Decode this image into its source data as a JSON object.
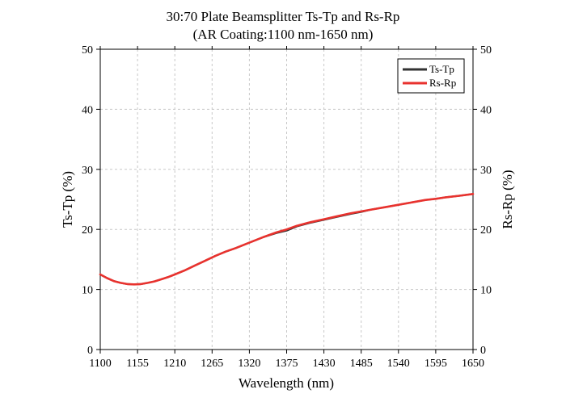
{
  "chart_data": {
    "type": "line",
    "title": "30:70 Plate Beamsplitter Ts-Tp and Rs-Rp",
    "subtitle": "(AR Coating:1100 nm-1650 nm)",
    "xlabel": "Wavelength (nm)",
    "ylabel": "Ts-Tp (%)",
    "ylabel_right": "Rs-Rp (%)",
    "xlim": [
      1100,
      1650
    ],
    "ylim": [
      0,
      50
    ],
    "x_ticks": [
      "1100",
      "1155",
      "1210",
      "1265",
      "1320",
      "1375",
      "1430",
      "1485",
      "1540",
      "1595",
      "1650"
    ],
    "y_ticks": [
      "0",
      "10",
      "20",
      "30",
      "40",
      "50"
    ],
    "grid": true,
    "legend_position": "top-right",
    "series": [
      {
        "name": "Ts-Tp",
        "color": "#333333",
        "x": [
          1100,
          1110,
          1120,
          1130,
          1140,
          1150,
          1160,
          1170,
          1180,
          1190,
          1200,
          1210,
          1225,
          1240,
          1255,
          1270,
          1285,
          1300,
          1320,
          1340,
          1360,
          1375,
          1390,
          1410,
          1430,
          1450,
          1470,
          1485,
          1500,
          1520,
          1540,
          1560,
          1580,
          1595,
          1610,
          1630,
          1650
        ],
        "y": [
          12.5,
          11.9,
          11.4,
          11.1,
          10.9,
          10.85,
          10.9,
          11.1,
          11.35,
          11.7,
          12.05,
          12.5,
          13.2,
          14.0,
          14.8,
          15.6,
          16.3,
          16.9,
          17.8,
          18.7,
          19.4,
          19.8,
          20.5,
          21.1,
          21.6,
          22.1,
          22.6,
          22.9,
          23.3,
          23.7,
          24.1,
          24.5,
          24.9,
          25.1,
          25.35,
          25.6,
          25.9
        ]
      },
      {
        "name": "Rs-Rp",
        "color": "#e8322e",
        "x": [
          1100,
          1110,
          1120,
          1130,
          1140,
          1150,
          1160,
          1170,
          1180,
          1190,
          1200,
          1210,
          1225,
          1240,
          1255,
          1270,
          1285,
          1300,
          1320,
          1340,
          1360,
          1375,
          1390,
          1410,
          1430,
          1450,
          1470,
          1485,
          1500,
          1520,
          1540,
          1560,
          1580,
          1595,
          1610,
          1630,
          1650
        ],
        "y": [
          12.5,
          11.9,
          11.4,
          11.1,
          10.9,
          10.85,
          10.9,
          11.1,
          11.35,
          11.7,
          12.05,
          12.5,
          13.2,
          14.0,
          14.8,
          15.6,
          16.3,
          16.9,
          17.8,
          18.7,
          19.5,
          20.0,
          20.6,
          21.2,
          21.7,
          22.2,
          22.7,
          23.0,
          23.3,
          23.7,
          24.1,
          24.5,
          24.9,
          25.1,
          25.35,
          25.6,
          25.9
        ]
      }
    ]
  }
}
